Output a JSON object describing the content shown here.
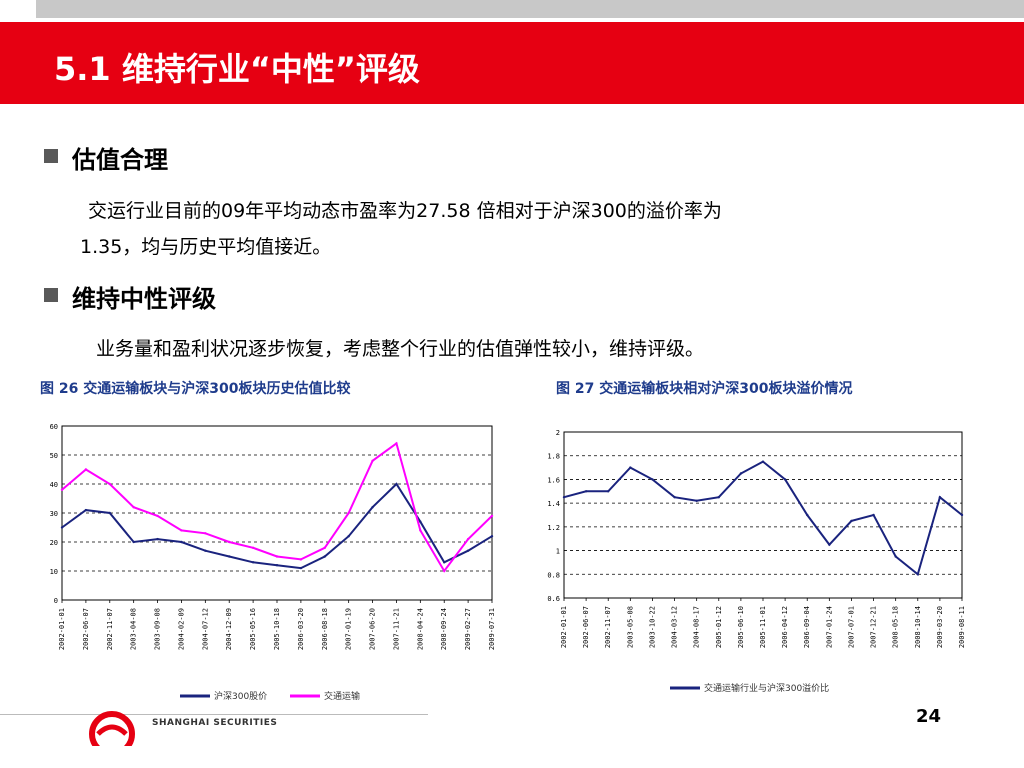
{
  "slide": {
    "title": "5.1 维持行业“中性”评级",
    "page_number": "24",
    "logo_text": "SHANGHAI SECURITIES",
    "colors": {
      "band": "#e60012",
      "bullet": "#595959",
      "caption": "#1f3c8c",
      "series_a": "#1a237e",
      "series_b": "#ff00ff"
    }
  },
  "sections": [
    {
      "heading": "估值合理",
      "lines": [
        "交运行业目前的09年平均动态市盈率为27.58 倍相对于沪深300的溢价率为",
        "1.35，均与历史平均值接近。"
      ]
    },
    {
      "heading": "维持中性评级",
      "lines": [
        "业务量和盈利状况逐步恢复，考虑整个行业的估值弹性较小，维持评级。"
      ]
    }
  ],
  "figures": [
    {
      "caption": "图 26 交通运输板块与沪深300板块历史估值比较"
    },
    {
      "caption": "图 27 交通运输板块相对沪深300板块溢价情况"
    }
  ],
  "chart_data": [
    {
      "type": "line",
      "ylim": [
        0,
        60
      ],
      "yticks": [
        "0",
        "10",
        "20",
        "30",
        "40",
        "50",
        "60"
      ],
      "x": [
        "2002-01-01",
        "2002-06-07",
        "2002-11-07",
        "2003-04-08",
        "2003-09-08",
        "2004-02-09",
        "2004-07-12",
        "2004-12-09",
        "2005-05-16",
        "2005-10-18",
        "2006-03-20",
        "2006-08-18",
        "2007-01-19",
        "2007-06-20",
        "2007-11-21",
        "2008-04-24",
        "2008-09-24",
        "2009-02-27",
        "2009-07-31"
      ],
      "series": [
        {
          "name": "沪深300股价",
          "color": "#1a237e",
          "values": [
            25,
            31,
            30,
            20,
            21,
            20,
            17,
            15,
            13,
            12,
            11,
            15,
            22,
            32,
            40,
            27,
            13,
            17,
            22
          ]
        },
        {
          "name": "交通运输",
          "color": "#ff00ff",
          "values": [
            38,
            45,
            40,
            32,
            29,
            24,
            23,
            20,
            18,
            15,
            14,
            18,
            30,
            48,
            54,
            24,
            10,
            21,
            29
          ]
        }
      ]
    },
    {
      "type": "line",
      "ylim": [
        0.6,
        2
      ],
      "yticks": [
        "0.6",
        "0.8",
        "1",
        "1.2",
        "1.4",
        "1.6",
        "1.8",
        "2"
      ],
      "x": [
        "2002-01-01",
        "2002-06-07",
        "2002-11-07",
        "2003-05-08",
        "2003-10-22",
        "2004-03-12",
        "2004-08-17",
        "2005-01-12",
        "2005-06-10",
        "2005-11-01",
        "2006-04-12",
        "2006-09-04",
        "2007-01-24",
        "2007-07-01",
        "2007-12-21",
        "2008-05-18",
        "2008-10-14",
        "2009-03-20",
        "2009-08-11"
      ],
      "series": [
        {
          "name": "交通运输行业与沪深300溢价比",
          "color": "#1a237e",
          "values": [
            1.45,
            1.5,
            1.5,
            1.7,
            1.6,
            1.45,
            1.42,
            1.45,
            1.65,
            1.75,
            1.6,
            1.3,
            1.05,
            1.25,
            1.3,
            0.95,
            0.8,
            1.45,
            1.3
          ]
        }
      ]
    }
  ]
}
